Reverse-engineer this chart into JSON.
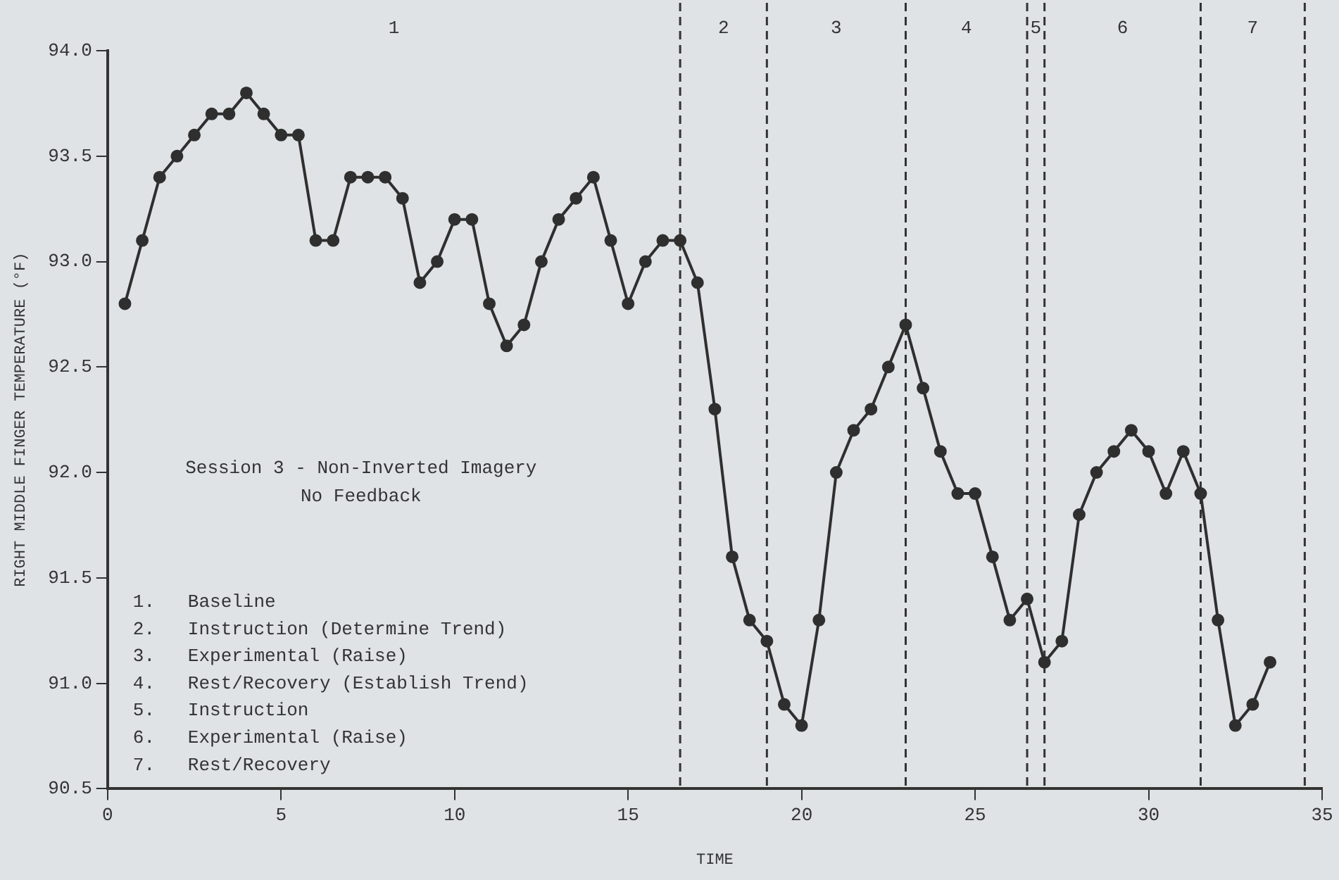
{
  "chart_data": {
    "type": "line",
    "title": "Session 3 - Non-Inverted Imagery",
    "subtitle": "No Feedback",
    "xlabel": "TIME",
    "ylabel": "RIGHT MIDDLE FINGER TEMPERATURE (°F)",
    "x": [
      0.5,
      1,
      1.5,
      2,
      2.5,
      3,
      3.5,
      4,
      4.5,
      5,
      5.5,
      6,
      6.5,
      7,
      7.5,
      8,
      8.5,
      9,
      9.5,
      10,
      10.5,
      11,
      11.5,
      12,
      12.5,
      13,
      13.5,
      14,
      14.5,
      15,
      15.5,
      16,
      16.5,
      17,
      17.5,
      18,
      18.5,
      19,
      19.5,
      20,
      20.5,
      21,
      21.5,
      22,
      22.5,
      23,
      23.5,
      24,
      24.5,
      25,
      25.5,
      26,
      26.5,
      27,
      27.5,
      28,
      28.5,
      29,
      29.5,
      30,
      30.5,
      31,
      31.5,
      32,
      32.5,
      33,
      33.5
    ],
    "series": [
      {
        "color": "#2f2f2f",
        "values": [
          92.8,
          93.1,
          93.4,
          93.5,
          93.6,
          93.7,
          93.7,
          93.8,
          93.7,
          93.6,
          93.6,
          93.1,
          93.1,
          93.4,
          93.4,
          93.4,
          93.3,
          92.9,
          93.0,
          93.2,
          93.2,
          92.8,
          92.6,
          92.7,
          93.0,
          93.2,
          93.3,
          93.4,
          93.1,
          92.8,
          93.0,
          93.1,
          93.1,
          92.9,
          92.3,
          91.6,
          91.3,
          91.2,
          90.9,
          90.8,
          91.3,
          92.0,
          92.2,
          92.3,
          92.5,
          92.7,
          92.4,
          92.1,
          91.9,
          91.9,
          91.6,
          91.3,
          91.4,
          91.1,
          91.2,
          91.8,
          92.0,
          92.1,
          92.2,
          92.1,
          91.9,
          92.1,
          91.9,
          91.3,
          90.8,
          90.9,
          91.1
        ]
      }
    ],
    "xlim": [
      0,
      35
    ],
    "xticks": [
      0,
      5,
      10,
      15,
      20,
      25,
      30,
      35
    ],
    "ylim": [
      90.5,
      94.0
    ],
    "yticks": [
      90.5,
      {
        "value": 91,
        "label": "91.0"
      },
      91.5,
      {
        "value": 92,
        "label": "92.0"
      },
      92.5,
      {
        "value": 93,
        "label": "93.0"
      },
      93.5,
      {
        "value": 94,
        "label": "94.0"
      }
    ],
    "ref_lines": [
      {
        "axis": "x",
        "value": 16.5
      },
      {
        "axis": "x",
        "value": 19
      },
      {
        "axis": "x",
        "value": 23
      },
      {
        "axis": "x",
        "value": 26.5
      },
      {
        "axis": "x",
        "value": 27
      },
      {
        "axis": "x",
        "value": 31.5
      },
      {
        "axis": "x",
        "value": 34.5
      }
    ],
    "annotations": [
      "1",
      "2",
      "3",
      "4",
      "5",
      "6",
      "7",
      "1.   Baseline",
      "2.   Instruction (Determine Trend)",
      "3.   Experimental (Raise)",
      "4.   Rest/Recovery (Establish Trend)",
      "5.   Instruction",
      "6.   Experimental (Raise)",
      "7.   Rest/Recovery"
    ],
    "line_style": "solid",
    "marker": "circle",
    "grid": false,
    "legend": false
  }
}
